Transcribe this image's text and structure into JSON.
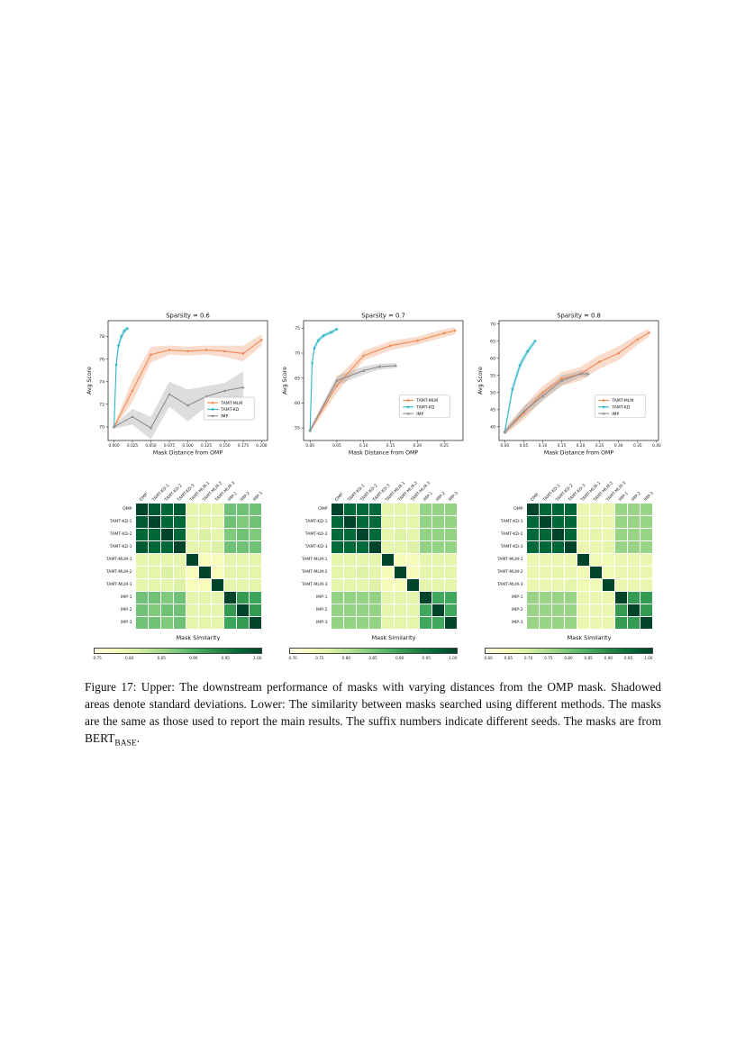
{
  "caption": {
    "text": "Figure 17: Upper: The downstream performance of masks with varying distances from the OMP mask. Shadowed areas denote standard deviations. Lower: The similarity between masks searched using different methods. The masks are the same as those used to report the main results. The suffix numbers indicate different seeds. The masks are from BERT",
    "subscript": "BASE",
    "tail": "."
  },
  "colors": {
    "tamt_mlm": "#f08a55",
    "tamt_kd": "#2fb5c8",
    "imp": "#8e8e8e",
    "colormap": [
      "#ffffe5",
      "#f7fcb9",
      "#d9f0a3",
      "#addd8e",
      "#78c679",
      "#41ab5d",
      "#238443",
      "#006837",
      "#004529"
    ]
  },
  "chart_data": [
    {
      "type": "line",
      "title": "Sparsity = 0.6",
      "xlabel": "Mask Distance from OMP",
      "ylabel": "Avg Score",
      "xlim": [
        -0.008,
        0.208
      ],
      "ylim": [
        68.8,
        79.4
      ],
      "xtick_values": [
        0,
        0.025,
        0.05,
        0.075,
        0.1,
        0.125,
        0.15,
        0.175,
        0.2
      ],
      "xtick_labels": [
        "0.000",
        "0.025",
        "0.050",
        "0.075",
        "0.100",
        "0.125",
        "0.150",
        "0.175",
        "0.200"
      ],
      "ytick_values": [
        70,
        72,
        74,
        76,
        78
      ],
      "ytick_labels": [
        "70",
        "72",
        "74",
        "76",
        "78"
      ],
      "legend_pos": [
        0.6,
        0.64
      ],
      "legend_labels": [
        "TAMT-MLM",
        "TAMT-KD",
        "IMP"
      ],
      "series": [
        {
          "name": "TAMT-MLM",
          "color": "#f08a55",
          "marker": "circle",
          "x": [
            0,
            0.025,
            0.05,
            0.075,
            0.1,
            0.125,
            0.15,
            0.175,
            0.2
          ],
          "y": [
            70.0,
            73.2,
            76.4,
            76.8,
            76.7,
            76.8,
            76.7,
            76.5,
            77.7
          ],
          "std": [
            0.15,
            1.0,
            0.7,
            0.4,
            0.4,
            0.4,
            0.5,
            0.7,
            0.5
          ]
        },
        {
          "name": "TAMT-KD",
          "color": "#2fb5c8",
          "marker": "star",
          "x": [
            0,
            0.003,
            0.006,
            0.01,
            0.014,
            0.018
          ],
          "y": [
            70.0,
            75.5,
            77.2,
            78.0,
            78.5,
            78.7
          ],
          "std": [
            0.15,
            0.5,
            0.4,
            0.3,
            0.25,
            0.2
          ]
        },
        {
          "name": "IMP",
          "color": "#8e8e8e",
          "marker": "triangle",
          "x": [
            0,
            0.025,
            0.05,
            0.075,
            0.1,
            0.125,
            0.15,
            0.175
          ],
          "y": [
            70.0,
            70.9,
            69.9,
            72.9,
            71.9,
            72.7,
            73.2,
            73.5
          ],
          "std": [
            0.15,
            0.7,
            1.0,
            1.1,
            1.4,
            0.9,
            0.7,
            1.4
          ]
        }
      ]
    },
    {
      "type": "line",
      "title": "Sparsity = 0.7",
      "xlabel": "Mask Distance from OMP",
      "ylabel": "Avg Score",
      "xlim": [
        -0.012,
        0.285
      ],
      "ylim": [
        52.5,
        76.5
      ],
      "xtick_values": [
        0,
        0.05,
        0.1,
        0.15,
        0.2,
        0.25
      ],
      "xtick_labels": [
        "0.00",
        "0.05",
        "0.10",
        "0.15",
        "0.20",
        "0.25"
      ],
      "ytick_values": [
        55,
        60,
        65,
        70,
        75
      ],
      "ytick_labels": [
        "55",
        "60",
        "65",
        "70",
        "75"
      ],
      "legend_pos": [
        0.6,
        0.62
      ],
      "legend_labels": [
        "TAMT-MLM",
        "TAMT-KD",
        "IMP"
      ],
      "series": [
        {
          "name": "TAMT-MLM",
          "color": "#f08a55",
          "marker": "circle",
          "x": [
            0,
            0.05,
            0.1,
            0.15,
            0.2,
            0.25,
            0.27
          ],
          "y": [
            54.5,
            63.5,
            69.5,
            71.5,
            72.5,
            74.0,
            74.5
          ],
          "std": [
            0.4,
            1.5,
            1.0,
            0.9,
            0.8,
            0.8,
            0.7
          ]
        },
        {
          "name": "TAMT-KD",
          "color": "#2fb5c8",
          "marker": "star",
          "x": [
            0,
            0.004,
            0.008,
            0.015,
            0.025,
            0.04,
            0.05
          ],
          "y": [
            54.5,
            68.0,
            71.0,
            72.5,
            73.5,
            74.2,
            74.8
          ],
          "std": [
            0.4,
            0.8,
            0.6,
            0.5,
            0.4,
            0.4,
            0.3
          ]
        },
        {
          "name": "IMP",
          "color": "#8e8e8e",
          "marker": "triangle",
          "x": [
            0,
            0.05,
            0.1,
            0.13,
            0.16
          ],
          "y": [
            54.5,
            64.5,
            66.5,
            67.3,
            67.5
          ],
          "std": [
            0.4,
            1.0,
            0.8,
            0.6,
            0.5
          ]
        }
      ]
    },
    {
      "type": "line",
      "title": "Sparsity = 0.8",
      "xlabel": "Mask Distance from OMP",
      "ylabel": "Avg Score",
      "xlim": [
        -0.015,
        0.405
      ],
      "ylim": [
        36,
        71
      ],
      "xtick_values": [
        0,
        0.05,
        0.1,
        0.15,
        0.2,
        0.25,
        0.3,
        0.35,
        0.4
      ],
      "xtick_labels": [
        "0.00",
        "0.05",
        "0.10",
        "0.15",
        "0.20",
        "0.25",
        "0.30",
        "0.35",
        "0.40"
      ],
      "ytick_values": [
        40,
        45,
        50,
        55,
        60,
        65,
        70
      ],
      "ytick_labels": [
        "40",
        "45",
        "50",
        "55",
        "60",
        "65",
        "70"
      ],
      "legend_pos": [
        0.6,
        0.62
      ],
      "legend_labels": [
        "TAMT-MLM",
        "TAMT-KD",
        "IMP"
      ],
      "series": [
        {
          "name": "TAMT-MLM",
          "color": "#f08a55",
          "marker": "circle",
          "x": [
            0,
            0.05,
            0.1,
            0.15,
            0.2,
            0.25,
            0.3,
            0.35,
            0.38
          ],
          "y": [
            38.5,
            44,
            50,
            54,
            55.5,
            59,
            61.5,
            65.5,
            67.5
          ],
          "std": [
            0.8,
            2,
            2,
            2,
            2,
            2,
            2,
            1.5,
            1.2
          ]
        },
        {
          "name": "TAMT-KD",
          "color": "#2fb5c8",
          "marker": "star",
          "x": [
            0,
            0.02,
            0.04,
            0.06,
            0.08
          ],
          "y": [
            38.5,
            51,
            58,
            62,
            65
          ],
          "std": [
            0.8,
            1.5,
            1.2,
            1.0,
            0.8
          ]
        },
        {
          "name": "IMP",
          "color": "#8e8e8e",
          "marker": "triangle",
          "x": [
            0,
            0.05,
            0.1,
            0.15,
            0.2,
            0.22
          ],
          "y": [
            38.5,
            44.5,
            49,
            53.5,
            55.5,
            55.5
          ],
          "std": [
            0.8,
            1.5,
            1.5,
            1.5,
            1.0,
            1.0
          ]
        }
      ]
    },
    {
      "type": "heatmap",
      "title": "Mask Similarity",
      "labels": [
        "OMP",
        "TAMT-KD-1",
        "TAMT-KD-2",
        "TAMT-KD-3",
        "TAMT-MLM-1",
        "TAMT-MLM-2",
        "TAMT-MLM-3",
        "IMP-1",
        "IMP-2",
        "IMP-3"
      ],
      "vmin": 0.75,
      "vmax": 1.0,
      "cbar_ticks": [
        "0.75",
        "0.80",
        "0.85",
        "0.90",
        "0.95",
        "1.00"
      ],
      "matrix": [
        [
          1.0,
          0.98,
          0.97,
          0.98,
          0.8,
          0.8,
          0.8,
          0.88,
          0.88,
          0.88
        ],
        [
          0.98,
          1.0,
          0.97,
          0.97,
          0.8,
          0.8,
          0.8,
          0.88,
          0.87,
          0.88
        ],
        [
          0.97,
          0.97,
          1.0,
          0.97,
          0.8,
          0.81,
          0.8,
          0.87,
          0.88,
          0.87
        ],
        [
          0.98,
          0.97,
          0.97,
          1.0,
          0.8,
          0.8,
          0.81,
          0.88,
          0.88,
          0.88
        ],
        [
          0.8,
          0.8,
          0.8,
          0.8,
          1.0,
          0.78,
          0.78,
          0.8,
          0.8,
          0.8
        ],
        [
          0.8,
          0.8,
          0.81,
          0.8,
          0.78,
          1.0,
          0.78,
          0.8,
          0.8,
          0.8
        ],
        [
          0.8,
          0.8,
          0.8,
          0.81,
          0.78,
          0.78,
          1.0,
          0.8,
          0.8,
          0.8
        ],
        [
          0.88,
          0.88,
          0.87,
          0.88,
          0.8,
          0.8,
          0.8,
          1.0,
          0.92,
          0.91
        ],
        [
          0.88,
          0.87,
          0.88,
          0.88,
          0.8,
          0.8,
          0.8,
          0.92,
          1.0,
          0.92
        ],
        [
          0.88,
          0.88,
          0.87,
          0.88,
          0.8,
          0.8,
          0.8,
          0.91,
          0.92,
          1.0
        ]
      ]
    },
    {
      "type": "heatmap",
      "title": "Mask Similarity",
      "labels": [
        "OMP",
        "TAMT-KD-1",
        "TAMT-KD-2",
        "TAMT-KD-3",
        "TAMT-MLM-1",
        "TAMT-MLM-2",
        "TAMT-MLM-3",
        "IMP-1",
        "IMP-2",
        "IMP-3"
      ],
      "vmin": 0.7,
      "vmax": 1.0,
      "cbar_ticks": [
        "0.70",
        "0.75",
        "0.80",
        "0.85",
        "0.90",
        "0.95",
        "1.00"
      ],
      "matrix": [
        [
          1.0,
          0.96,
          0.96,
          0.96,
          0.76,
          0.76,
          0.76,
          0.83,
          0.83,
          0.83
        ],
        [
          0.96,
          1.0,
          0.96,
          0.96,
          0.76,
          0.76,
          0.76,
          0.83,
          0.83,
          0.83
        ],
        [
          0.96,
          0.96,
          1.0,
          0.96,
          0.76,
          0.77,
          0.76,
          0.83,
          0.83,
          0.83
        ],
        [
          0.96,
          0.96,
          0.96,
          1.0,
          0.76,
          0.76,
          0.77,
          0.83,
          0.83,
          0.83
        ],
        [
          0.76,
          0.76,
          0.76,
          0.76,
          1.0,
          0.74,
          0.74,
          0.76,
          0.76,
          0.76
        ],
        [
          0.76,
          0.76,
          0.77,
          0.76,
          0.74,
          1.0,
          0.74,
          0.76,
          0.76,
          0.76
        ],
        [
          0.76,
          0.76,
          0.76,
          0.77,
          0.74,
          0.74,
          1.0,
          0.76,
          0.76,
          0.76
        ],
        [
          0.83,
          0.83,
          0.83,
          0.83,
          0.76,
          0.76,
          0.76,
          1.0,
          0.89,
          0.89
        ],
        [
          0.83,
          0.83,
          0.83,
          0.83,
          0.76,
          0.76,
          0.76,
          0.89,
          1.0,
          0.89
        ],
        [
          0.83,
          0.83,
          0.83,
          0.83,
          0.76,
          0.76,
          0.76,
          0.89,
          0.89,
          1.0
        ]
      ]
    },
    {
      "type": "heatmap",
      "title": "Mask Similarity",
      "labels": [
        "OMP",
        "TAMT-KD-1",
        "TAMT-KD-2",
        "TAMT-KD-3",
        "TAMT-MLM-1",
        "TAMT-MLM-2",
        "TAMT-MLM-3",
        "IMP-1",
        "IMP-2",
        "IMP-3"
      ],
      "vmin": 0.6,
      "vmax": 1.0,
      "cbar_ticks": [
        "0.60",
        "0.65",
        "0.70",
        "0.75",
        "0.80",
        "0.85",
        "0.90",
        "0.95",
        "1.00"
      ],
      "matrix": [
        [
          1.0,
          0.95,
          0.95,
          0.95,
          0.67,
          0.67,
          0.67,
          0.77,
          0.77,
          0.77
        ],
        [
          0.95,
          1.0,
          0.95,
          0.95,
          0.67,
          0.67,
          0.67,
          0.77,
          0.77,
          0.77
        ],
        [
          0.95,
          0.95,
          1.0,
          0.95,
          0.67,
          0.68,
          0.67,
          0.77,
          0.77,
          0.77
        ],
        [
          0.95,
          0.95,
          0.95,
          1.0,
          0.67,
          0.67,
          0.68,
          0.77,
          0.77,
          0.77
        ],
        [
          0.67,
          0.67,
          0.67,
          0.67,
          1.0,
          0.66,
          0.66,
          0.67,
          0.67,
          0.67
        ],
        [
          0.67,
          0.67,
          0.68,
          0.67,
          0.66,
          1.0,
          0.66,
          0.67,
          0.67,
          0.67
        ],
        [
          0.67,
          0.67,
          0.67,
          0.68,
          0.66,
          0.66,
          1.0,
          0.67,
          0.67,
          0.67
        ],
        [
          0.77,
          0.77,
          0.77,
          0.77,
          0.67,
          0.67,
          0.67,
          1.0,
          0.87,
          0.87
        ],
        [
          0.77,
          0.77,
          0.77,
          0.77,
          0.67,
          0.67,
          0.67,
          0.87,
          1.0,
          0.87
        ],
        [
          0.77,
          0.77,
          0.77,
          0.77,
          0.67,
          0.67,
          0.67,
          0.87,
          0.87,
          1.0
        ]
      ]
    }
  ]
}
